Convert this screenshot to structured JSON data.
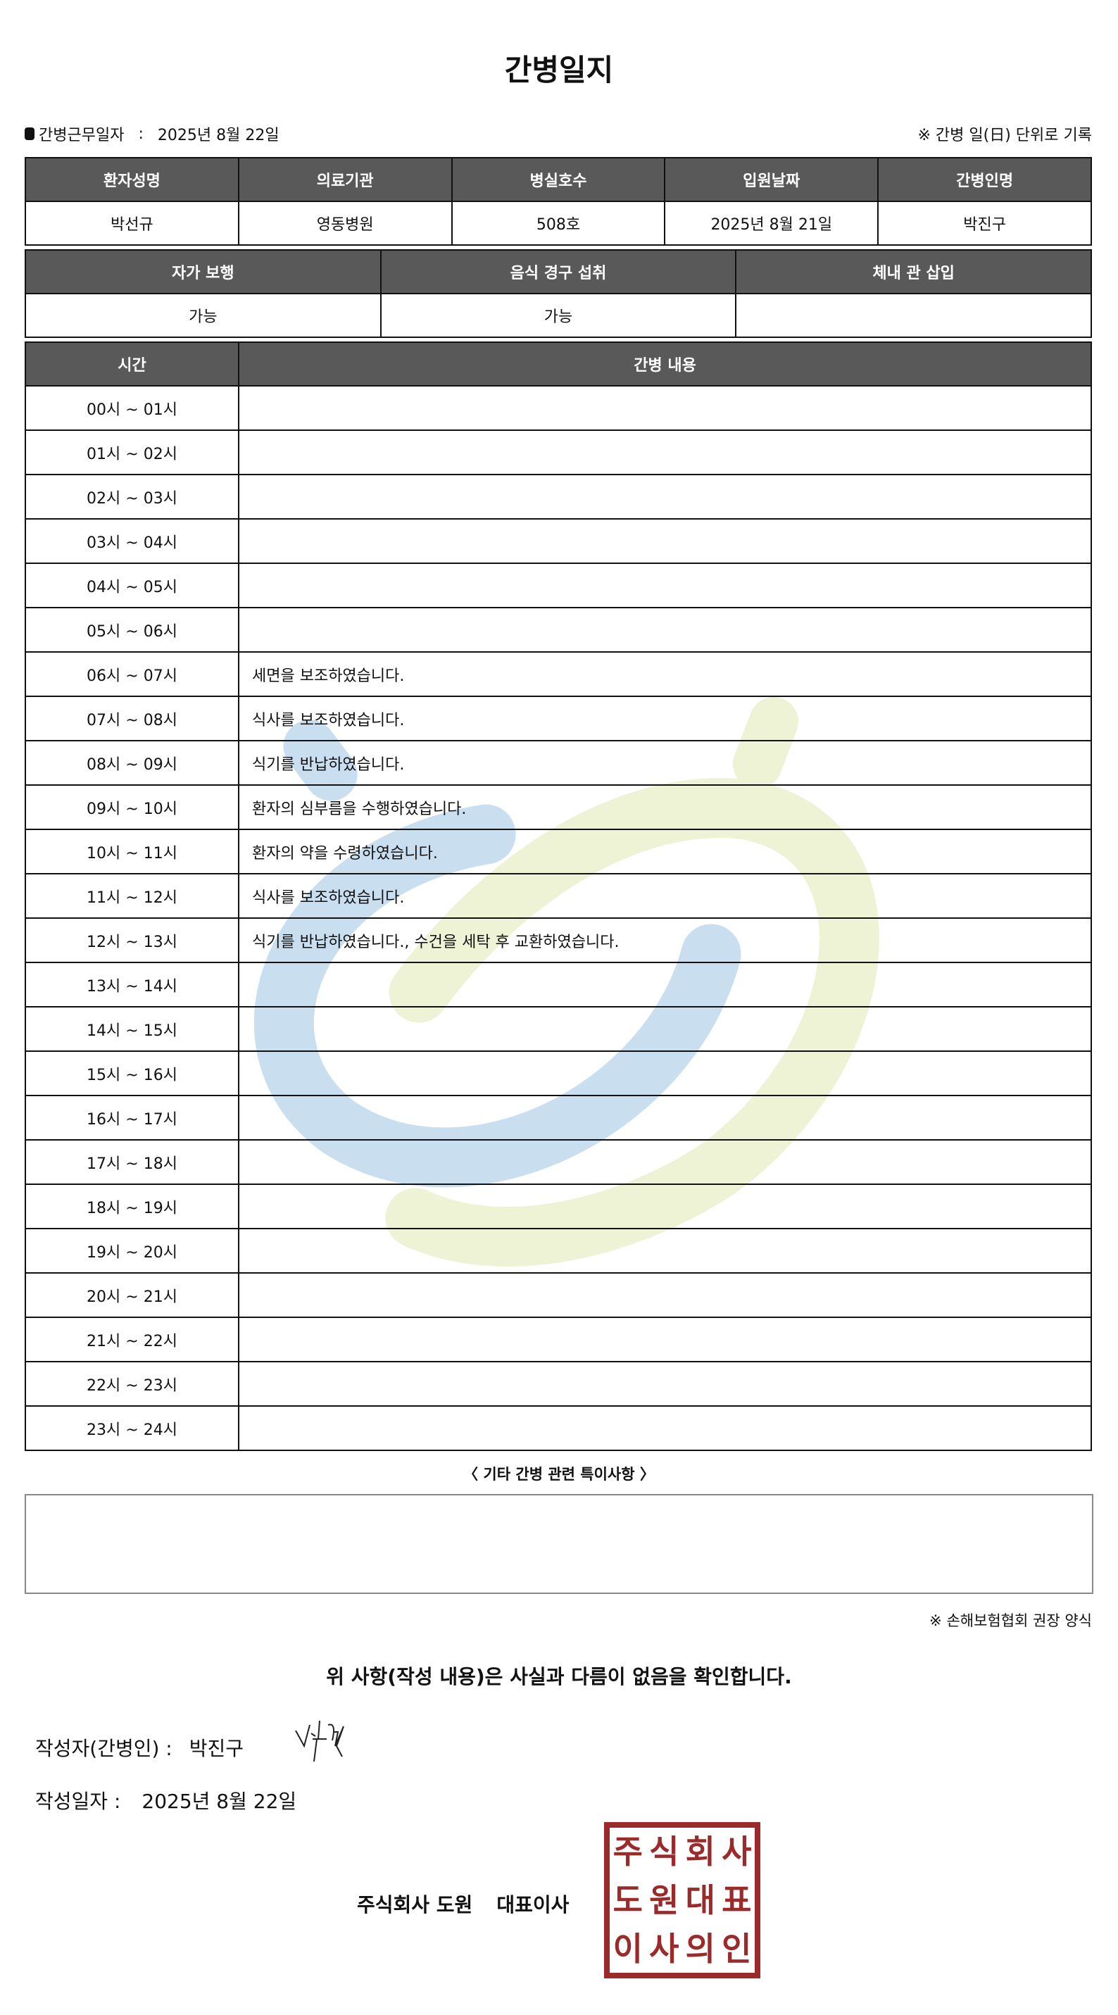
{
  "title": "간병일지",
  "work_date_label": "간병근무일자",
  "work_date_sep": ":",
  "work_date": "2025년 8월 22일",
  "record_note": "※ 간병 일(日) 단위로 기록",
  "patient_table": {
    "headers": [
      "환자성명",
      "의료기관",
      "병실호수",
      "입원날짜",
      "간병인명"
    ],
    "values": [
      "박선규",
      "영동병원",
      "508호",
      "2025년 8월 21일",
      "박진구"
    ]
  },
  "status_table": {
    "headers": [
      "자가 보행",
      "음식 경구 섭취",
      "체내 관 삽입"
    ],
    "values": [
      "가능",
      "가능",
      ""
    ]
  },
  "log_table": {
    "headers": [
      "시간",
      "간병 내용"
    ],
    "rows": [
      {
        "time": "00시 ~ 01시",
        "content": ""
      },
      {
        "time": "01시 ~ 02시",
        "content": ""
      },
      {
        "time": "02시 ~ 03시",
        "content": ""
      },
      {
        "time": "03시 ~ 04시",
        "content": ""
      },
      {
        "time": "04시 ~ 05시",
        "content": ""
      },
      {
        "time": "05시 ~ 06시",
        "content": ""
      },
      {
        "time": "06시 ~ 07시",
        "content": "세면을 보조하였습니다."
      },
      {
        "time": "07시 ~ 08시",
        "content": "식사를 보조하였습니다."
      },
      {
        "time": "08시 ~ 09시",
        "content": "식기를 반납하였습니다."
      },
      {
        "time": "09시 ~ 10시",
        "content": "환자의 심부름을 수행하였습니다."
      },
      {
        "time": "10시 ~ 11시",
        "content": "환자의 약을 수령하였습니다."
      },
      {
        "time": "11시 ~ 12시",
        "content": "식사를 보조하였습니다."
      },
      {
        "time": "12시 ~ 13시",
        "content": "식기를 반납하였습니다., 수건을 세탁 후 교환하였습니다."
      },
      {
        "time": "13시 ~ 14시",
        "content": ""
      },
      {
        "time": "14시 ~ 15시",
        "content": ""
      },
      {
        "time": "15시 ~ 16시",
        "content": ""
      },
      {
        "time": "16시 ~ 17시",
        "content": ""
      },
      {
        "time": "17시 ~ 18시",
        "content": ""
      },
      {
        "time": "18시 ~ 19시",
        "content": ""
      },
      {
        "time": "19시 ~ 20시",
        "content": ""
      },
      {
        "time": "20시 ~ 21시",
        "content": ""
      },
      {
        "time": "21시 ~ 22시",
        "content": ""
      },
      {
        "time": "22시 ~ 23시",
        "content": ""
      },
      {
        "time": "23시 ~ 24시",
        "content": ""
      }
    ]
  },
  "special_notes_label": "〈 기타 간병 관련 특이사항 〉",
  "special_notes": "",
  "footnote": "※ 손해보험협회 권장 양식",
  "confirm_text": "위 사항(작성 내용)은 사실과 다름이 없음을 확인합니다.",
  "writer_label": "작성자(간병인) :",
  "writer_name": "박진구",
  "write_date_label": "작성일자 :",
  "write_date": "2025년 8월 22일",
  "company_name": "주식회사 도원",
  "company_role": "대표이사",
  "stamp_text": [
    "주",
    "식",
    "회",
    "사",
    "도",
    "원",
    "대",
    "표",
    "이",
    "사",
    "의",
    "인"
  ],
  "colors": {
    "header_bg": "#595959",
    "stamp": "#9b2a2a",
    "watermark_blue": "#c9dff0",
    "watermark_green": "#eef3d6"
  }
}
